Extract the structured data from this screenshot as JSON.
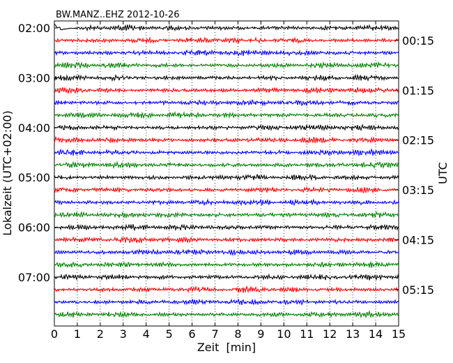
{
  "chart_data": {
    "type": "line",
    "title": "BW.MANZ..EHZ 2012-10-26",
    "xlabel": "Zeit  [min]",
    "ylabel_left": "Lokalzeit (UTC+02:00)",
    "ylabel_right": "UTC",
    "x_ticks": [
      "0",
      "1",
      "2",
      "3",
      "4",
      "5",
      "6",
      "7",
      "8",
      "9",
      "10",
      "11",
      "12",
      "13",
      "14",
      "15"
    ],
    "xlim": [
      0,
      15
    ],
    "row_interval_min": 15,
    "row_count": 24,
    "row_colors": [
      "#000000",
      "#ff0000",
      "#0000ff",
      "#008000"
    ],
    "left_ticks": [
      {
        "row": 0,
        "label": "02:00"
      },
      {
        "row": 4,
        "label": "03:00"
      },
      {
        "row": 8,
        "label": "04:00"
      },
      {
        "row": 12,
        "label": "05:00"
      },
      {
        "row": 16,
        "label": "06:00"
      },
      {
        "row": 20,
        "label": "07:00"
      }
    ],
    "right_ticks": [
      {
        "row": 1,
        "label": "00:15"
      },
      {
        "row": 5,
        "label": "01:15"
      },
      {
        "row": 9,
        "label": "02:15"
      },
      {
        "row": 13,
        "label": "03:15"
      },
      {
        "row": 17,
        "label": "04:15"
      },
      {
        "row": 21,
        "label": "05:15"
      }
    ],
    "grid": "vertical dotted at each minute"
  }
}
